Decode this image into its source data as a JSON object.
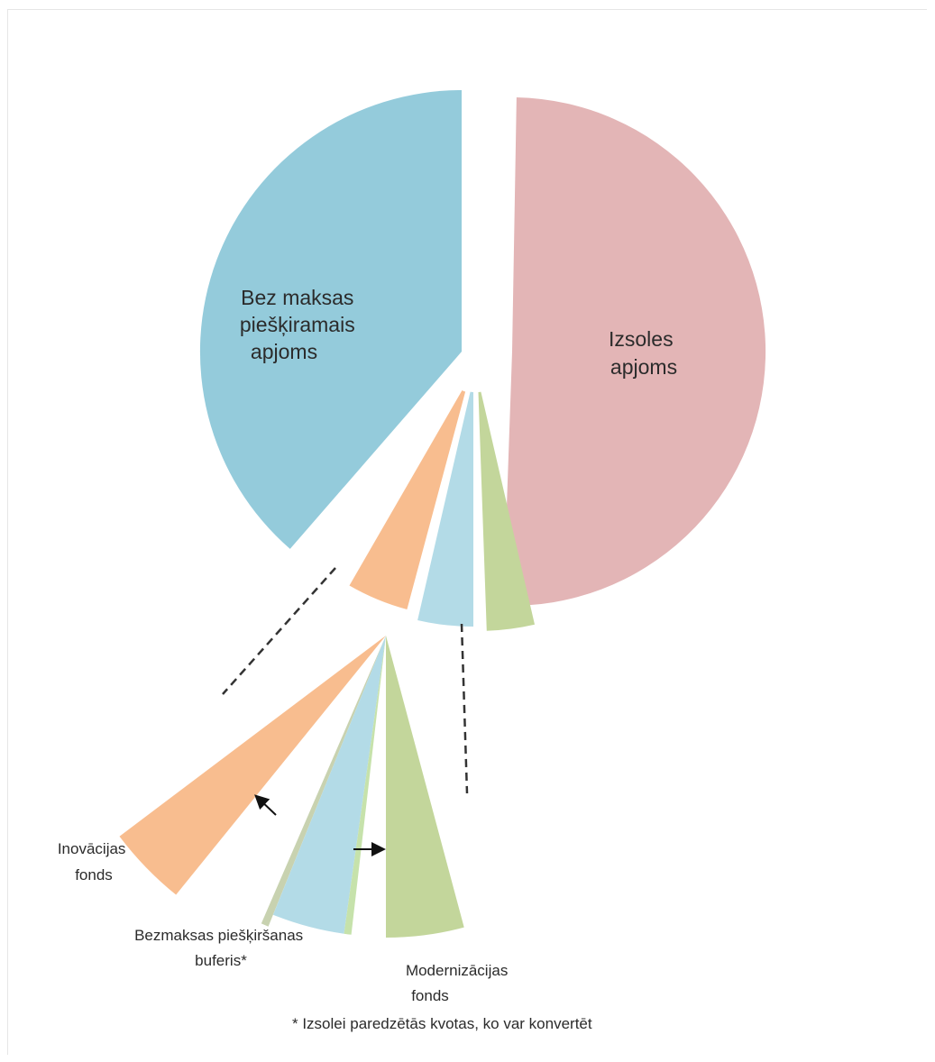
{
  "chart_data": {
    "type": "pie",
    "title": "",
    "slices": [
      {
        "name": "Izsoles apjoms",
        "label_lines": [
          "Izsoles",
          "apjoms"
        ],
        "value": 57,
        "color": "#e3b5b6"
      },
      {
        "name": "Bez maksas piešķiramais apjoms",
        "label_lines": [
          "Bez maksas",
          "piešķiramais",
          "apjoms"
        ],
        "value": 37,
        "color": "#94cbdb"
      },
      {
        "name": "Inovācijas fonds",
        "label_lines": [
          "Inovācijas",
          "fonds"
        ],
        "value": 2,
        "color": "#f8bd8f"
      },
      {
        "name": "Bezmaksas piešķiršanas buferis*",
        "label_lines": [
          "Bezmaksas piešķiršanas",
          "buferis*"
        ],
        "value": 2,
        "color": "#b3dbe7"
      },
      {
        "name": "Modernizācijas fonds",
        "label_lines": [
          "Modernizācijas",
          "fonds"
        ],
        "value": 2,
        "color": "#c3d69b"
      }
    ],
    "footnote": "* Izsolei paredzētās kvotas, ko var konvertēt",
    "legend": "none",
    "exploded_detail": true
  }
}
